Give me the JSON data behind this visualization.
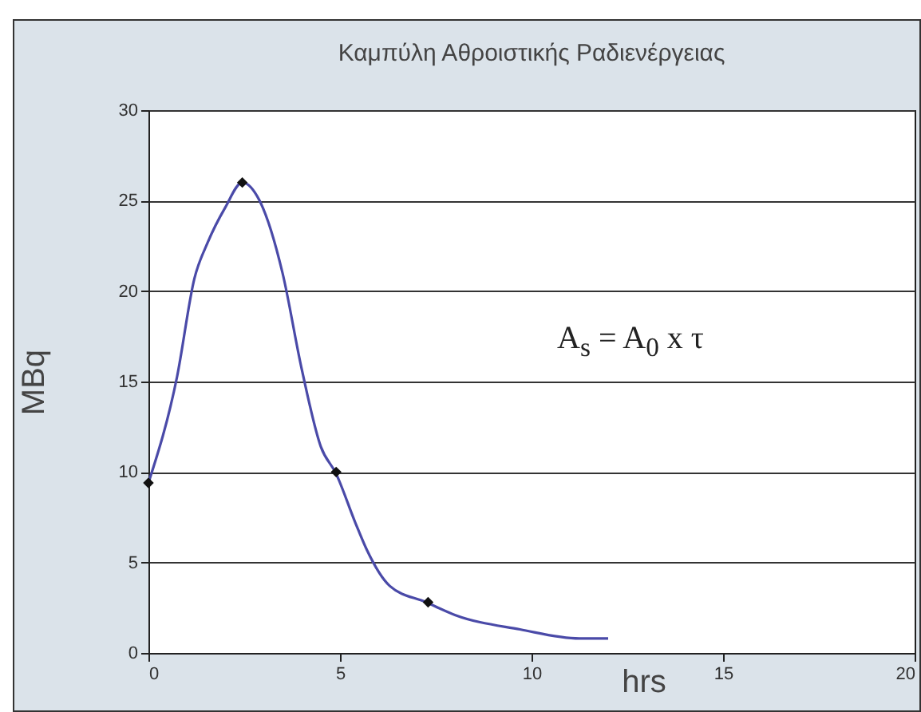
{
  "chart_data": {
    "type": "line",
    "title": "Καμπύλη Αθροιστικής Ραδιενέργειας",
    "xlabel": "hrs",
    "ylabel": "MBq",
    "annotations": [
      "A$_{s}$ = A$_{0}$ x τ"
    ],
    "xlim": [
      0,
      20
    ],
    "xticks": [
      0,
      5,
      10,
      15,
      20
    ],
    "ylim": [
      0,
      30
    ],
    "yticks": [
      0,
      5,
      10,
      15,
      20,
      25,
      30
    ],
    "grid": "y",
    "series": [
      {
        "color": "#4a4aa8",
        "marker": "none",
        "x": [
          0,
          0.75,
          1.2,
          1.55,
          2.0,
          2.45,
          2.9,
          3.5,
          4.0,
          4.5,
          4.9,
          5.4,
          5.7,
          6.3,
          7.25,
          8.0,
          9.7,
          11.25,
          12
        ],
        "values": [
          9.4,
          15.3,
          20.7,
          22.7,
          24.6,
          26.0,
          25.0,
          21.0,
          15.7,
          11.4,
          9.9,
          7.2,
          5.7,
          3.7,
          2.8,
          2.1,
          1.3,
          0.8,
          0.8
        ]
      },
      {
        "type": "scatter",
        "color": "#111111",
        "marker": "diamond",
        "x": [
          0,
          2.45,
          4.9,
          7.3
        ],
        "values": [
          9.4,
          26.0,
          10.0,
          2.8
        ]
      }
    ]
  }
}
